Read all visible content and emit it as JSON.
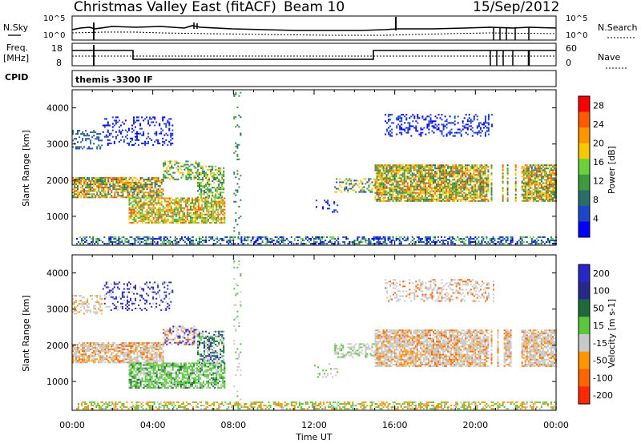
{
  "header": {
    "station": "Christmas Valley East (fitACF)",
    "beam": "Beam 10",
    "date": "15/Sep/2012"
  },
  "top_panels": {
    "nsky_label": "N.Sky",
    "nsearch_label": "N.Search",
    "noise_ticks": [
      "10^5",
      "10^0"
    ],
    "freq_label_1": "Freq.",
    "freq_label_2": "[MHz]",
    "freq_ticks": [
      18,
      8
    ],
    "nave_label": "Nave",
    "nave_ticks": [
      60,
      0
    ],
    "cpid_label": "CPID",
    "cpid_text": "themis -3300 IF"
  },
  "colors": {
    "power_scale": [
      "#0000ff",
      "#1e46c8",
      "#2a6e6a",
      "#3c9c3c",
      "#6ccf3c",
      "#f5c800",
      "#ff9600",
      "#ff5a00",
      "#ff0000"
    ],
    "velocity_scale": [
      "#2828c8",
      "#28288c",
      "#1e6a3c",
      "#5ac83c",
      "#c8c8c8",
      "#ff9600",
      "#ff6400",
      "#ff2800"
    ]
  },
  "chart_data": [
    {
      "type": "heatmap",
      "name": "power",
      "ylabel": "Slant Range [km]",
      "ylim": [
        200,
        4500
      ],
      "yticks": [
        1000,
        2000,
        3000,
        4000
      ],
      "xlim": [
        0,
        24
      ],
      "colorbar_label": "Power [dB]",
      "colorbar_ticks": [
        4,
        8,
        12,
        16,
        20,
        24,
        28
      ],
      "colorbar_range": [
        0,
        30
      ]
    },
    {
      "type": "heatmap",
      "name": "velocity",
      "ylabel": "Slant Range [km]",
      "ylim": [
        200,
        4500
      ],
      "yticks": [
        1000,
        2000,
        3000,
        4000
      ],
      "xlim": [
        0,
        24
      ],
      "xlabel": "Time UT",
      "xticks": [
        "00:00",
        "04:00",
        "08:00",
        "12:00",
        "16:00",
        "20:00",
        "00:00"
      ],
      "colorbar_label": "Velocity [m s-1]",
      "colorbar_ticks": [
        200,
        100,
        50,
        15,
        -15,
        -50,
        -100,
        -200
      ]
    }
  ]
}
